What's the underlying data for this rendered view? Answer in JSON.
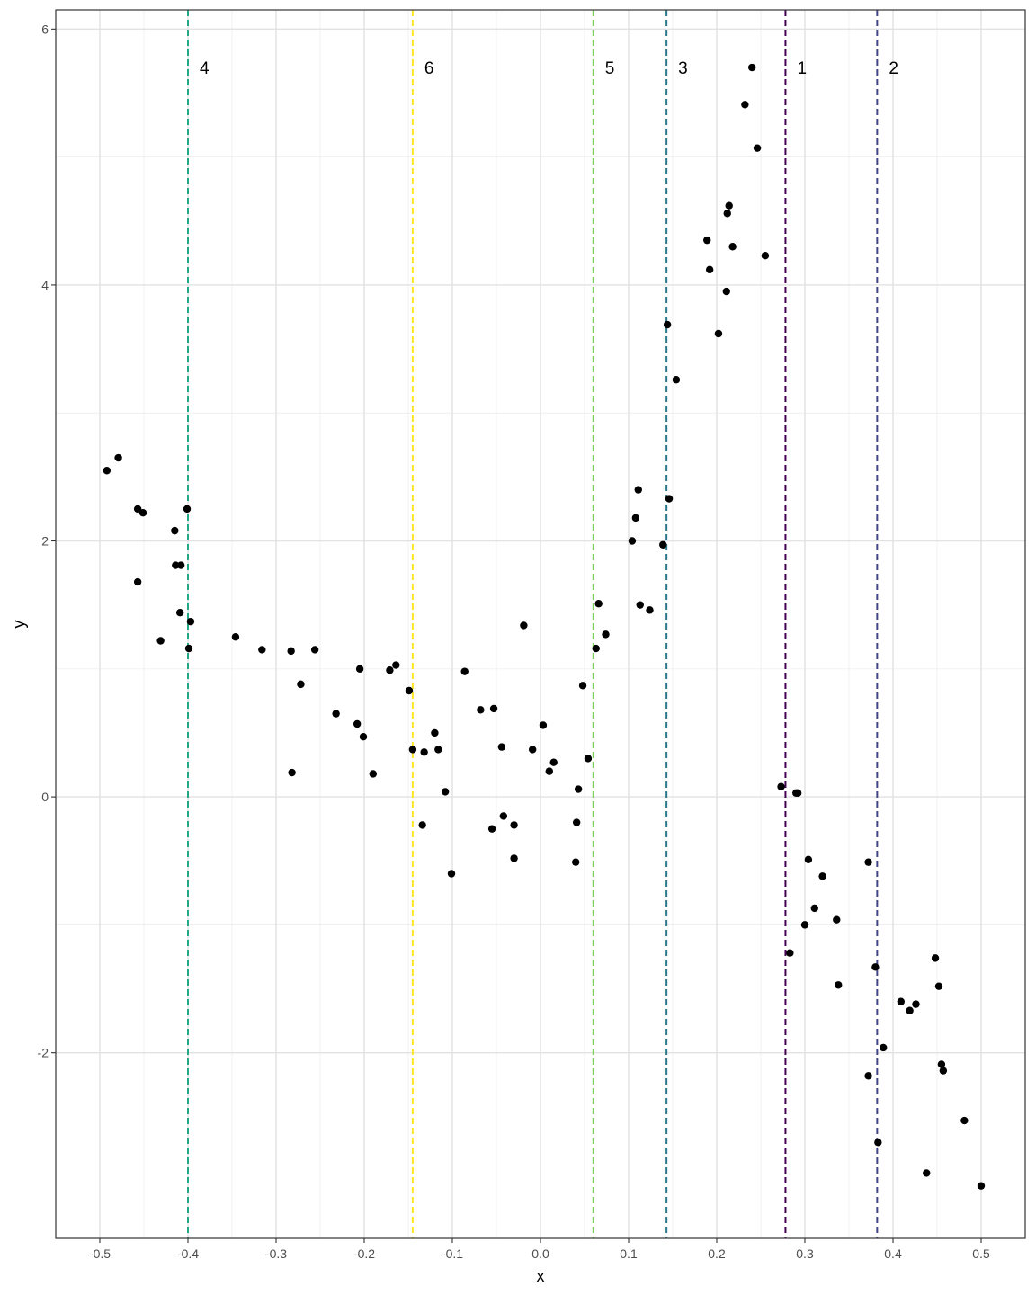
{
  "chart_data": {
    "type": "scatter",
    "title": "",
    "xlabel": "x",
    "ylabel": "y",
    "xlim": [
      -0.55,
      0.55
    ],
    "ylim": [
      -3.45,
      6.15
    ],
    "grid": true,
    "x_ticks": [
      -0.5,
      -0.4,
      -0.3,
      -0.2,
      -0.1,
      0.0,
      0.1,
      0.2,
      0.3,
      0.4,
      0.5
    ],
    "x_tick_labels": [
      "-0.5",
      "-0.4",
      "-0.3",
      "-0.2",
      "-0.1",
      "0.0",
      "0.1",
      "0.2",
      "0.3",
      "0.4",
      "0.5"
    ],
    "y_ticks": [
      -2,
      0,
      2,
      4,
      6
    ],
    "y_tick_labels": [
      "-2",
      "0",
      "2",
      "4",
      "6"
    ],
    "points": [
      [
        -0.492,
        2.55
      ],
      [
        -0.479,
        2.65
      ],
      [
        -0.457,
        2.25
      ],
      [
        -0.451,
        2.22
      ],
      [
        -0.457,
        1.68
      ],
      [
        -0.431,
        1.22
      ],
      [
        -0.415,
        2.08
      ],
      [
        -0.414,
        1.81
      ],
      [
        -0.408,
        1.81
      ],
      [
        -0.409,
        1.44
      ],
      [
        -0.401,
        2.25
      ],
      [
        -0.397,
        1.37
      ],
      [
        -0.399,
        1.16
      ],
      [
        -0.346,
        1.25
      ],
      [
        -0.316,
        1.15
      ],
      [
        -0.283,
        1.14
      ],
      [
        -0.282,
        0.19
      ],
      [
        -0.272,
        0.88
      ],
      [
        -0.256,
        1.15
      ],
      [
        -0.232,
        0.65
      ],
      [
        -0.208,
        0.57
      ],
      [
        -0.205,
        1.0
      ],
      [
        -0.201,
        0.47
      ],
      [
        -0.19,
        0.18
      ],
      [
        -0.171,
        0.99
      ],
      [
        -0.164,
        1.03
      ],
      [
        -0.149,
        0.83
      ],
      [
        -0.145,
        0.37
      ],
      [
        -0.134,
        -0.22
      ],
      [
        -0.132,
        0.35
      ],
      [
        -0.12,
        0.5
      ],
      [
        -0.116,
        0.37
      ],
      [
        -0.108,
        0.04
      ],
      [
        -0.101,
        -0.6
      ],
      [
        -0.086,
        0.98
      ],
      [
        -0.068,
        0.68
      ],
      [
        -0.055,
        -0.25
      ],
      [
        -0.053,
        0.69
      ],
      [
        -0.044,
        0.39
      ],
      [
        -0.042,
        -0.15
      ],
      [
        -0.03,
        -0.48
      ],
      [
        -0.03,
        -0.22
      ],
      [
        -0.019,
        1.34
      ],
      [
        -0.009,
        0.37
      ],
      [
        0.003,
        0.56
      ],
      [
        0.01,
        0.2
      ],
      [
        0.015,
        0.27
      ],
      [
        0.04,
        -0.51
      ],
      [
        0.041,
        -0.2
      ],
      [
        0.043,
        0.06
      ],
      [
        0.048,
        0.87
      ],
      [
        0.054,
        0.3
      ],
      [
        0.063,
        1.16
      ],
      [
        0.066,
        1.51
      ],
      [
        0.074,
        1.27
      ],
      [
        0.104,
        2.0
      ],
      [
        0.108,
        2.18
      ],
      [
        0.111,
        2.4
      ],
      [
        0.113,
        1.5
      ],
      [
        0.124,
        1.46
      ],
      [
        0.139,
        1.97
      ],
      [
        0.144,
        3.69
      ],
      [
        0.146,
        2.33
      ],
      [
        0.154,
        3.26
      ],
      [
        0.189,
        4.35
      ],
      [
        0.192,
        4.12
      ],
      [
        0.202,
        3.62
      ],
      [
        0.211,
        3.95
      ],
      [
        0.212,
        4.56
      ],
      [
        0.214,
        4.62
      ],
      [
        0.218,
        4.3
      ],
      [
        0.232,
        5.41
      ],
      [
        0.24,
        5.7
      ],
      [
        0.246,
        5.07
      ],
      [
        0.255,
        4.23
      ],
      [
        0.273,
        0.08
      ],
      [
        0.283,
        -1.22
      ],
      [
        0.29,
        0.03
      ],
      [
        0.292,
        0.03
      ],
      [
        0.3,
        -1.0
      ],
      [
        0.304,
        -0.49
      ],
      [
        0.311,
        -0.87
      ],
      [
        0.32,
        -0.62
      ],
      [
        0.336,
        -0.96
      ],
      [
        0.338,
        -1.47
      ],
      [
        0.372,
        -0.51
      ],
      [
        0.372,
        -2.18
      ],
      [
        0.38,
        -1.33
      ],
      [
        0.383,
        -2.7
      ],
      [
        0.389,
        -1.96
      ],
      [
        0.409,
        -1.6
      ],
      [
        0.419,
        -1.67
      ],
      [
        0.426,
        -1.62
      ],
      [
        0.438,
        -2.94
      ],
      [
        0.448,
        -1.26
      ],
      [
        0.452,
        -1.48
      ],
      [
        0.455,
        -2.09
      ],
      [
        0.457,
        -2.14
      ],
      [
        0.481,
        -2.53
      ],
      [
        0.5,
        -3.04
      ]
    ],
    "vlines": [
      {
        "x": 0.278,
        "label": "1",
        "color": "#440154"
      },
      {
        "x": 0.382,
        "label": "2",
        "color": "#414487"
      },
      {
        "x": 0.143,
        "label": "3",
        "color": "#2A788E"
      },
      {
        "x": -0.4,
        "label": "4",
        "color": "#22A884"
      },
      {
        "x": 0.06,
        "label": "5",
        "color": "#7AD151"
      },
      {
        "x": -0.145,
        "label": "6",
        "color": "#FDE725"
      }
    ],
    "vline_label_y": 5.7
  }
}
